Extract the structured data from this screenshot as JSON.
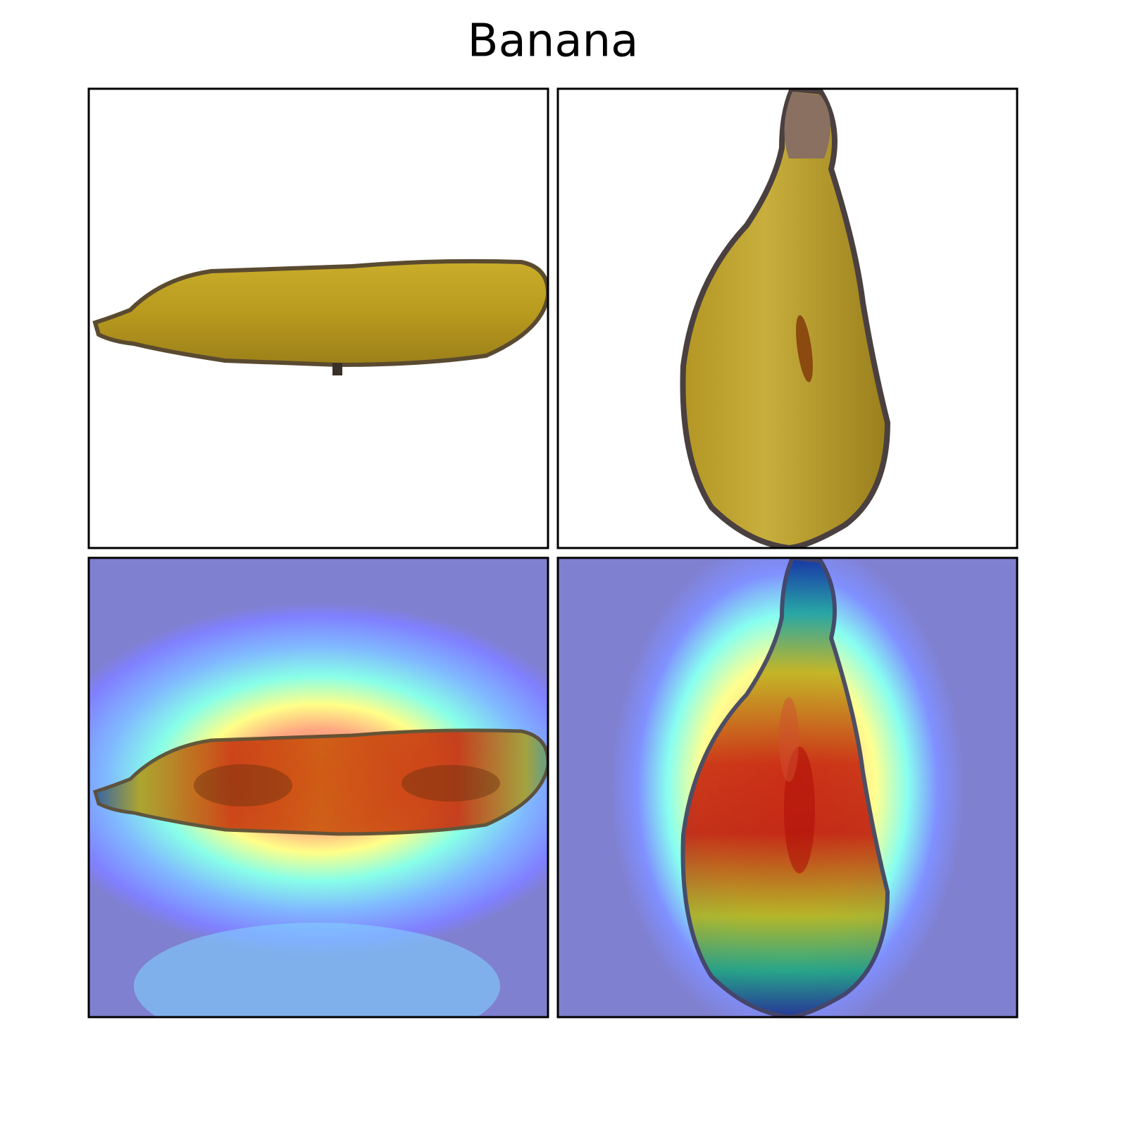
{
  "title": "Banana"
}
